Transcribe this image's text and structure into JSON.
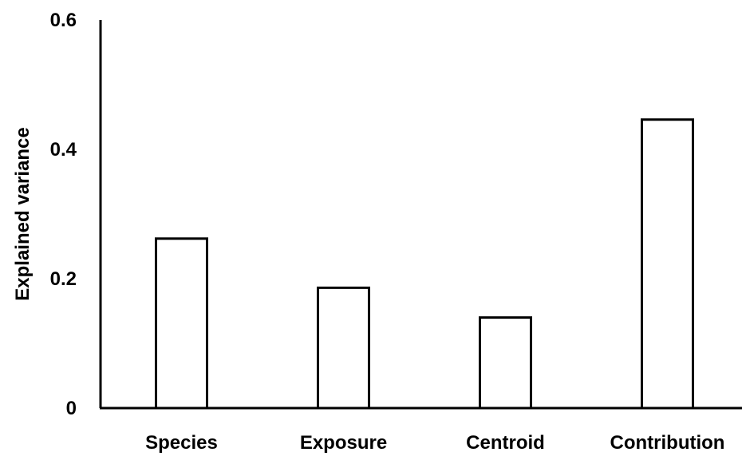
{
  "chart_data": {
    "type": "bar",
    "title": "",
    "xlabel": "",
    "ylabel": "Explained variance",
    "categories": [
      "Species",
      "Exposure",
      "Centroid",
      "Contribution"
    ],
    "values": [
      0.262,
      0.186,
      0.14,
      0.446
    ],
    "ylim": [
      0,
      0.6
    ],
    "yticks": [
      0,
      0.2,
      0.4,
      0.6
    ],
    "ytick_labels": [
      "0",
      "0.2",
      "0.4",
      "0.6"
    ],
    "grid": false,
    "legend": "none",
    "bar_fill": "#ffffff",
    "bar_stroke": "#000000",
    "axis_color": "#000000"
  }
}
